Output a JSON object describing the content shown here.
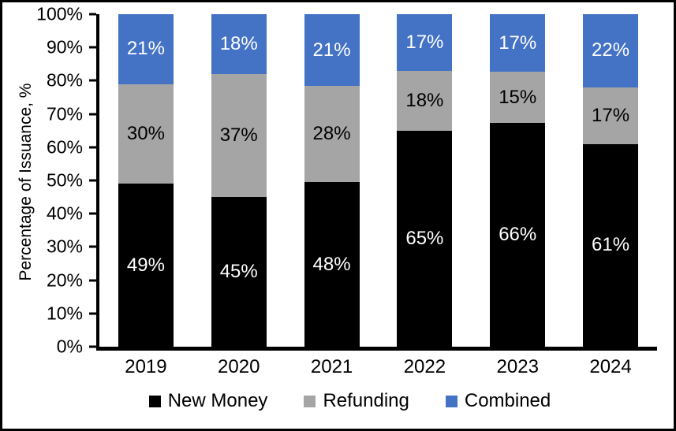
{
  "chart_data": {
    "type": "bar",
    "variant": "100%-stacked-vertical",
    "title": "",
    "xlabel": "",
    "ylabel": "Percentage of Issuance, %",
    "categories": [
      "2019",
      "2020",
      "2021",
      "2022",
      "2023",
      "2024"
    ],
    "series": [
      {
        "name": "New Money",
        "color": "#000000",
        "label_color": "#ffffff",
        "values": [
          49,
          45,
          48,
          65,
          66,
          61
        ]
      },
      {
        "name": "Refunding",
        "color": "#A5A5A5",
        "label_color": "#000000",
        "values": [
          30,
          37,
          28,
          18,
          15,
          17
        ]
      },
      {
        "name": "Combined",
        "color": "#4472C4",
        "label_color": "#ffffff",
        "values": [
          21,
          18,
          21,
          17,
          17,
          22
        ]
      }
    ],
    "value_suffix": "%",
    "y_ticks": [
      "0%",
      "10%",
      "20%",
      "30%",
      "40%",
      "50%",
      "60%",
      "70%",
      "80%",
      "90%",
      "100%"
    ],
    "ylim": [
      0,
      100
    ],
    "grid": false,
    "legend_position": "bottom",
    "axis_color": "#000000",
    "background_color": "#ffffff"
  }
}
